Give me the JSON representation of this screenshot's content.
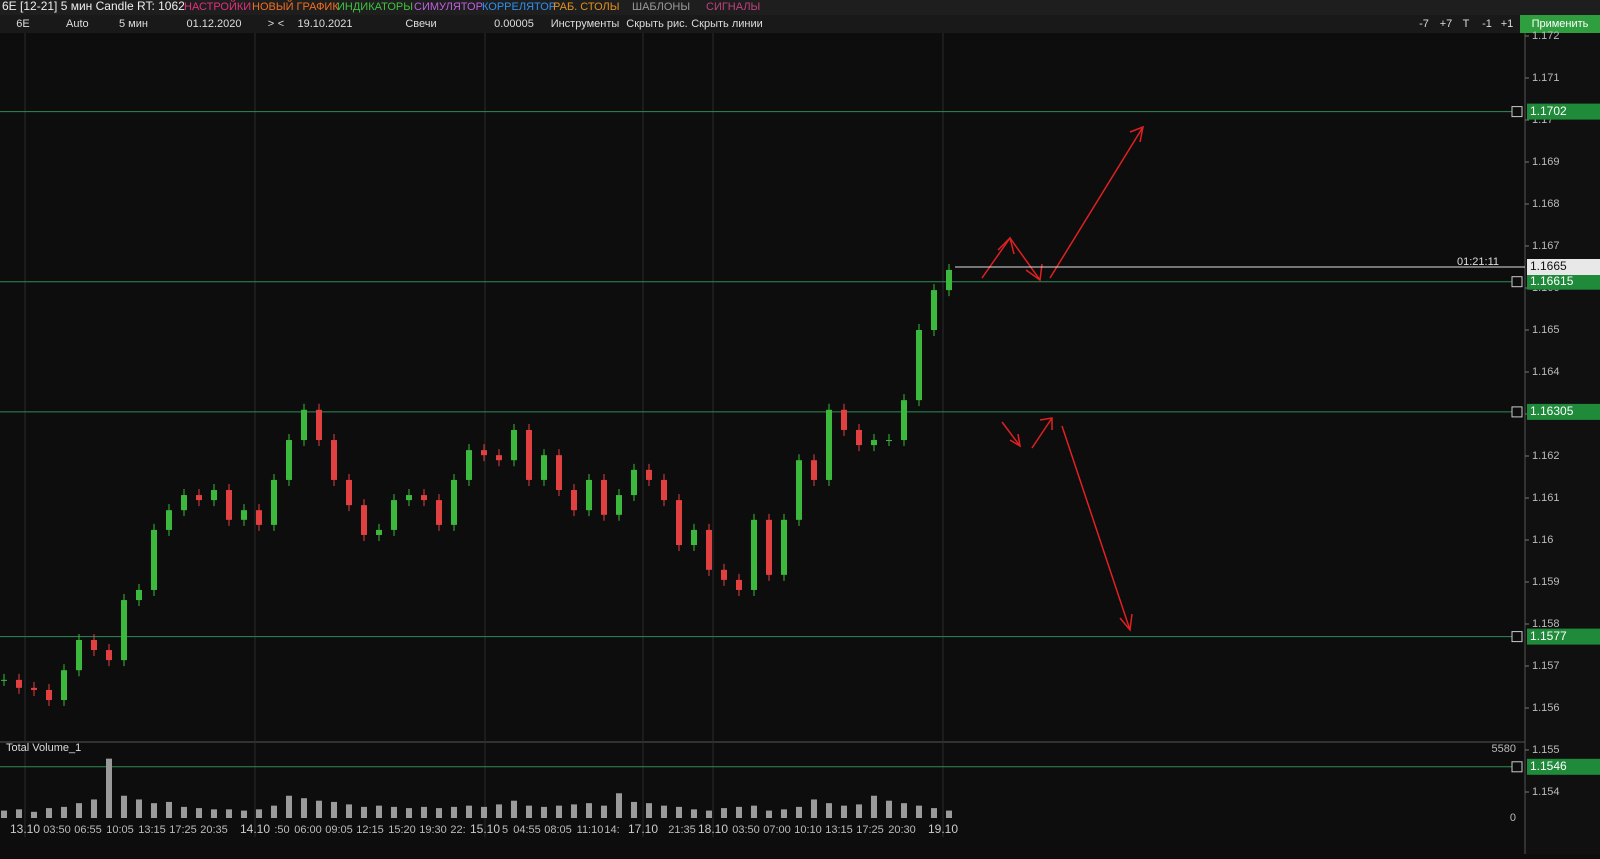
{
  "title_bar": {
    "title": "6E [12-21] 5 мин Candle RT: 1062",
    "menu": [
      {
        "text": "НАСТРОЙКИ",
        "color": "#e0307a"
      },
      {
        "text": "НОВЫЙ ГРАФИК",
        "color": "#f07020"
      },
      {
        "text": "ИНДИКАТОРЫ",
        "color": "#40c040"
      },
      {
        "text": "СИМУЛЯТОР",
        "color": "#c060e0"
      },
      {
        "text": "КОРРЕЛЯТОР",
        "color": "#3090f0"
      },
      {
        "text": "РАБ. СТОЛЫ",
        "color": "#e09020"
      },
      {
        "text": "ШАБЛОНЫ",
        "color": "#999999"
      },
      {
        "text": "СИГНАЛЫ",
        "color": "#c04080"
      }
    ]
  },
  "toolbar": {
    "items": [
      "6E",
      "Auto",
      "5 мин",
      "01.12.2020",
      ">",
      "<",
      "19.10.2021",
      "Свечи",
      "0.00005",
      "Инструменты",
      "Скрыть рис.",
      "Скрыть линии"
    ],
    "right": [
      "-7",
      "+7",
      "T",
      "-1",
      "+1"
    ],
    "apply": "Применить"
  },
  "chart_data": {
    "type": "candlestick",
    "up_color": "#3cb83c",
    "down_color": "#e04040",
    "values": [
      1.15667,
      1.15648,
      1.15643,
      1.15619,
      1.1569,
      1.15762,
      1.15738,
      1.15714,
      1.15857,
      1.15881,
      1.16024,
      1.16071,
      1.16107,
      1.16095,
      1.16119,
      1.16048,
      1.16071,
      1.16036,
      1.16143,
      1.16238,
      1.1631,
      1.16238,
      1.16143,
      1.16083,
      1.16012,
      1.16024,
      1.16095,
      1.16107,
      1.16095,
      1.16036,
      1.16143,
      1.16214,
      1.16202,
      1.1619,
      1.16262,
      1.16143,
      1.16202,
      1.16119,
      1.16071,
      1.16143,
      1.1606,
      1.16107,
      1.16167,
      1.16143,
      1.16095,
      1.15988,
      1.16024,
      1.15929,
      1.15905,
      1.15881,
      1.16048,
      1.15917,
      1.16048,
      1.1619,
      1.16143,
      1.1631,
      1.16262,
      1.16226,
      1.16238,
      1.16238,
      1.16333,
      1.165,
      1.16595,
      1.16643
    ],
    "ylim": [
      1.154,
      1.172
    ],
    "yticks": [
      1.154,
      1.155,
      1.156,
      1.157,
      1.158,
      1.159,
      1.16,
      1.161,
      1.162,
      1.163,
      1.164,
      1.165,
      1.166,
      1.167,
      1.168,
      1.169,
      1.17,
      1.171,
      1.172
    ],
    "levels": [
      1.1702,
      1.16615,
      1.16305,
      1.1577,
      1.1546
    ],
    "level_color": "#2e8b57",
    "current_price": 1.1665,
    "timer": "01:21:11",
    "x_labels": [
      "13.10",
      "03:50",
      "06:55",
      "10:05",
      "13:15",
      "17:25",
      "20:35",
      "14.10",
      ":50",
      "06:00",
      "09:05",
      "12:15",
      "15:20",
      "19:30",
      "22:",
      "15.10",
      "5",
      "04:55",
      "08:05",
      "11:10",
      "14:",
      "17.10",
      "21:35",
      "18.10",
      "03:50",
      "07:00",
      "10:10",
      "13:15",
      "17:25",
      "20:30",
      "19.10"
    ],
    "volume": {
      "label": "Total Volume_1",
      "color": "#9a9a9a",
      "values": [
        600,
        700,
        500,
        800,
        900,
        1200,
        1500,
        4800,
        1800,
        1500,
        1200,
        1300,
        900,
        800,
        700,
        700,
        600,
        700,
        1000,
        1800,
        1600,
        1400,
        1300,
        1100,
        900,
        1000,
        900,
        800,
        900,
        800,
        900,
        1000,
        900,
        1100,
        1400,
        1000,
        900,
        1000,
        1100,
        1200,
        1000,
        2000,
        1300,
        1200,
        1000,
        900,
        700,
        600,
        800,
        900,
        1000,
        600,
        700,
        900,
        1500,
        1200,
        1000,
        1100,
        1800,
        1400,
        1200,
        1000,
        800,
        600
      ],
      "ylim": [
        0,
        5580
      ],
      "yticks": [
        0,
        5580
      ]
    }
  }
}
